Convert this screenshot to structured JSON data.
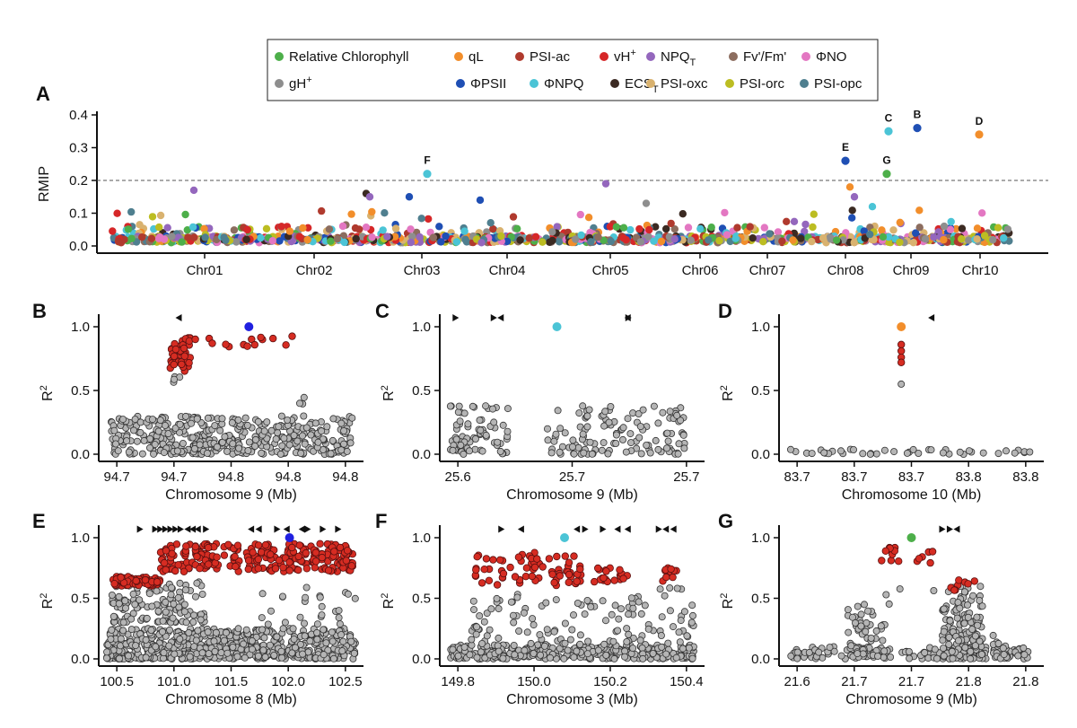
{
  "legend": {
    "items": [
      {
        "label": "Relative Chlorophyll",
        "color": "#4daf4a"
      },
      {
        "label": "qL",
        "color": "#f28e2b"
      },
      {
        "label": "PSI-ac",
        "color": "#b03a2e"
      },
      {
        "label": "vH",
        "sup": "+",
        "color": "#d62728"
      },
      {
        "label": "NPQ",
        "sub": "T",
        "color": "#9467bd"
      },
      {
        "label": "Fv'/Fm'",
        "color": "#8c6d5f"
      },
      {
        "label": "ΦNO",
        "color": "#e377c2"
      },
      {
        "label": "gH",
        "sup": "+",
        "color": "#8e8e8e"
      },
      {
        "label": "ΦPSII",
        "color": "#1f4fb4"
      },
      {
        "label": "ΦNPQ",
        "color": "#4bc4d6"
      },
      {
        "label": "ECS",
        "sub": "T",
        "color": "#3b2a22"
      },
      {
        "label": "PSI-oxc",
        "color": "#d9b26f"
      },
      {
        "label": "PSI-orc",
        "color": "#bcbd22"
      },
      {
        "label": "PSI-opc",
        "color": "#4f7f8f"
      }
    ]
  },
  "chart_data": [
    {
      "panel": "A",
      "type": "scatter",
      "ylabel": "RMIP",
      "ylim": [
        0,
        0.4
      ],
      "yticks": [
        "0.0",
        "0.1",
        "0.2",
        "0.3",
        "0.4"
      ],
      "categories": [
        "Chr01",
        "Chr02",
        "Chr03",
        "Chr04",
        "Chr05",
        "Chr06",
        "Chr07",
        "Chr08",
        "Chr09",
        "Chr10"
      ],
      "threshold": 0.2,
      "highlight_points": [
        {
          "label": "F",
          "chromosome": "Chr03",
          "series": "ΦNPQ",
          "y": 0.22
        },
        {
          "label": "E",
          "chromosome": "Chr08",
          "series": "ΦPSII",
          "y": 0.26
        },
        {
          "label": "C",
          "chromosome": "Chr09",
          "series": "ΦNPQ",
          "y": 0.35
        },
        {
          "label": "G",
          "chromosome": "Chr09",
          "series": "Relative Chlorophyll",
          "y": 0.22
        },
        {
          "label": "B",
          "chromosome": "Chr09",
          "series": "ΦPSII",
          "y": 0.36
        },
        {
          "label": "D",
          "chromosome": "Chr10",
          "series": "qL",
          "y": 0.34
        }
      ],
      "other_peaks": [
        {
          "chromosome": "Chr01",
          "series": "NPQ_T",
          "y": 0.17
        },
        {
          "chromosome": "Chr02",
          "series": "ECS_T",
          "y": 0.16
        },
        {
          "chromosome": "Chr02",
          "series": "NPQ_T",
          "y": 0.15
        },
        {
          "chromosome": "Chr03",
          "series": "ΦPSII",
          "y": 0.15
        },
        {
          "chromosome": "Chr04",
          "series": "ΦPSII",
          "y": 0.14
        },
        {
          "chromosome": "Chr05",
          "series": "gH+",
          "y": 0.13
        },
        {
          "chromosome": "Chr05",
          "series": "NPQ_T",
          "y": 0.19
        },
        {
          "chromosome": "Chr08",
          "series": "qL",
          "y": 0.18
        },
        {
          "chromosome": "Chr08",
          "series": "NPQ_T",
          "y": 0.15
        },
        {
          "chromosome": "Chr08",
          "series": "ΦNPQ",
          "y": 0.12
        },
        {
          "chromosome": "Chr10",
          "series": "gH+",
          "y": 0.06
        }
      ]
    },
    {
      "panel": "B",
      "type": "scatter",
      "xlabel": "Chromosome 9 (Mb)",
      "ylabel": "R",
      "ylabel_sup": "2",
      "xticks": [
        "94.7",
        "94.7",
        "94.8",
        "94.8",
        "94.8"
      ],
      "yticks": [
        "0.0",
        "0.5",
        "1.0"
      ],
      "ylim": [
        0,
        1.1
      ],
      "lead_color": "#2020e0",
      "genes": [
        {
          "x": 0.295,
          "dir": "left"
        }
      ],
      "lead": {
        "x": 0.57,
        "y": 1.0
      },
      "red_clusters": [
        {
          "x0": 0.26,
          "x1": 0.34,
          "y0": 0.65,
          "y1": 0.92,
          "n": 50
        },
        {
          "x0": 0.34,
          "x1": 0.75,
          "y0": 0.84,
          "y1": 0.93,
          "n": 14
        }
      ],
      "gray_clusters": [
        {
          "x0": 0.02,
          "x1": 0.98,
          "y0": 0.0,
          "y1": 0.3,
          "n": 420
        },
        {
          "x0": 0.26,
          "x1": 0.3,
          "y0": 0.55,
          "y1": 0.62,
          "n": 4
        },
        {
          "x0": 0.75,
          "x1": 0.8,
          "y0": 0.35,
          "y1": 0.46,
          "n": 3
        }
      ]
    },
    {
      "panel": "C",
      "type": "scatter",
      "xlabel": "Chromosome 9 (Mb)",
      "ylabel": "R",
      "ylabel_sup": "2",
      "xticks": [
        "25.6",
        "25.7",
        "25.7"
      ],
      "yticks": [
        "0.0",
        "0.5",
        "1.0"
      ],
      "ylim": [
        0,
        1.1
      ],
      "lead_color": "#4bc4d6",
      "genes": [
        {
          "x": 0.04,
          "dir": "right"
        },
        {
          "x": 0.19,
          "dir": "right"
        },
        {
          "x": 0.22,
          "dir": "left"
        },
        {
          "x": 0.72,
          "dir": "right"
        },
        {
          "x": 0.72,
          "dir": "left"
        }
      ],
      "lead": {
        "x": 0.44,
        "y": 1.0
      },
      "red_clusters": [],
      "gray_clusters": [
        {
          "x0": 0.02,
          "x1": 0.25,
          "y0": 0.0,
          "y1": 0.38,
          "n": 70
        },
        {
          "x0": 0.4,
          "x1": 0.95,
          "y0": 0.0,
          "y1": 0.38,
          "n": 120
        }
      ]
    },
    {
      "panel": "D",
      "type": "scatter",
      "xlabel": "Chromosome 10 (Mb)",
      "ylabel": "R",
      "ylabel_sup": "2",
      "xticks": [
        "83.7",
        "83.7",
        "83.7",
        "83.8",
        "83.8"
      ],
      "yticks": [
        "0.0",
        "0.5",
        "1.0"
      ],
      "ylim": [
        0,
        1.1
      ],
      "lead_color": "#f28e2b",
      "genes": [
        {
          "x": 0.58,
          "dir": "left"
        }
      ],
      "lead": {
        "x": 0.46,
        "y": 1.0
      },
      "red_points": [
        {
          "x": 0.46,
          "y": 0.86
        },
        {
          "x": 0.46,
          "y": 0.81
        },
        {
          "x": 0.46,
          "y": 0.76
        },
        {
          "x": 0.46,
          "y": 0.72
        }
      ],
      "red_clusters": [],
      "gray_points": [
        {
          "x": 0.46,
          "y": 0.55
        }
      ],
      "gray_clusters": [
        {
          "x0": 0.02,
          "x1": 0.98,
          "y0": 0.0,
          "y1": 0.04,
          "n": 40
        }
      ]
    },
    {
      "panel": "E",
      "type": "scatter",
      "xlabel": "Chromosome 8 (Mb)",
      "ylabel": "R",
      "ylabel_sup": "2",
      "xticks": [
        "100.5",
        "101.0",
        "101.5",
        "102.0",
        "102.5"
      ],
      "yticks": [
        "0.0",
        "0.5",
        "1.0"
      ],
      "ylim": [
        0,
        1.1
      ],
      "lead_color": "#2020e0",
      "genes": [
        {
          "x": 0.14,
          "dir": "right"
        },
        {
          "x": 0.2,
          "dir": "right"
        },
        {
          "x": 0.22,
          "dir": "right"
        },
        {
          "x": 0.24,
          "dir": "right"
        },
        {
          "x": 0.26,
          "dir": "right"
        },
        {
          "x": 0.28,
          "dir": "right"
        },
        {
          "x": 0.3,
          "dir": "right"
        },
        {
          "x": 0.33,
          "dir": "left"
        },
        {
          "x": 0.35,
          "dir": "left"
        },
        {
          "x": 0.37,
          "dir": "left"
        },
        {
          "x": 0.4,
          "dir": "right"
        },
        {
          "x": 0.58,
          "dir": "left"
        },
        {
          "x": 0.61,
          "dir": "left"
        },
        {
          "x": 0.68,
          "dir": "right"
        },
        {
          "x": 0.72,
          "dir": "left"
        },
        {
          "x": 0.78,
          "dir": "left"
        },
        {
          "x": 0.8,
          "dir": "right"
        },
        {
          "x": 0.86,
          "dir": "right"
        },
        {
          "x": 0.92,
          "dir": "right"
        }
      ],
      "lead": {
        "x": 0.73,
        "y": 1.0
      },
      "red_clusters": [
        {
          "x0": 0.03,
          "x1": 0.22,
          "y0": 0.6,
          "y1": 0.68,
          "n": 60
        },
        {
          "x0": 0.22,
          "x1": 0.98,
          "y0": 0.72,
          "y1": 0.95,
          "n": 260
        }
      ],
      "gray_clusters": [
        {
          "x0": 0.01,
          "x1": 0.99,
          "y0": 0.0,
          "y1": 0.25,
          "n": 650
        },
        {
          "x0": 0.03,
          "x1": 0.4,
          "y0": 0.3,
          "y1": 0.64,
          "n": 120
        },
        {
          "x0": 0.6,
          "x1": 0.99,
          "y0": 0.28,
          "y1": 0.6,
          "n": 25
        }
      ]
    },
    {
      "panel": "F",
      "type": "scatter",
      "xlabel": "Chromosome 3 (Mb)",
      "ylabel": "R",
      "ylabel_sup": "2",
      "xticks": [
        "149.8",
        "150.0",
        "150.2",
        "150.4"
      ],
      "yticks": [
        "0.0",
        "0.5",
        "1.0"
      ],
      "ylim": [
        0,
        1.1
      ],
      "lead_color": "#4bc4d6",
      "genes": [
        {
          "x": 0.22,
          "dir": "right"
        },
        {
          "x": 0.3,
          "dir": "left"
        },
        {
          "x": 0.52,
          "dir": "left"
        },
        {
          "x": 0.55,
          "dir": "right"
        },
        {
          "x": 0.62,
          "dir": "right"
        },
        {
          "x": 0.68,
          "dir": "left"
        },
        {
          "x": 0.72,
          "dir": "left"
        },
        {
          "x": 0.84,
          "dir": "right"
        },
        {
          "x": 0.87,
          "dir": "left"
        },
        {
          "x": 0.9,
          "dir": "left"
        }
      ],
      "lead": {
        "x": 0.47,
        "y": 1.0
      },
      "red_clusters": [
        {
          "x0": 0.1,
          "x1": 0.55,
          "y0": 0.6,
          "y1": 0.88,
          "n": 70
        },
        {
          "x0": 0.58,
          "x1": 0.72,
          "y0": 0.63,
          "y1": 0.75,
          "n": 20
        },
        {
          "x0": 0.85,
          "x1": 0.92,
          "y0": 0.62,
          "y1": 0.75,
          "n": 10
        }
      ],
      "gray_clusters": [
        {
          "x0": 0.02,
          "x1": 0.98,
          "y0": 0.0,
          "y1": 0.12,
          "n": 300
        },
        {
          "x0": 0.1,
          "x1": 0.98,
          "y0": 0.12,
          "y1": 0.6,
          "n": 120
        }
      ]
    },
    {
      "panel": "G",
      "type": "scatter",
      "xlabel": "Chromosome 9 (Mb)",
      "ylabel": "R",
      "ylabel_sup": "2",
      "xticks": [
        "21.6",
        "21.7",
        "21.7",
        "21.8",
        "21.8"
      ],
      "yticks": [
        "0.0",
        "0.5",
        "1.0"
      ],
      "ylim": [
        0,
        1.1
      ],
      "lead_color": "#4daf4a",
      "genes": [
        {
          "x": 0.62,
          "dir": "right"
        },
        {
          "x": 0.65,
          "dir": "right"
        },
        {
          "x": 0.68,
          "dir": "left"
        }
      ],
      "lead": {
        "x": 0.5,
        "y": 1.0
      },
      "red_clusters": [
        {
          "x0": 0.37,
          "x1": 0.45,
          "y0": 0.8,
          "y1": 0.92,
          "n": 10
        },
        {
          "x0": 0.5,
          "x1": 0.6,
          "y0": 0.78,
          "y1": 0.9,
          "n": 6
        },
        {
          "x0": 0.65,
          "x1": 0.75,
          "y0": 0.55,
          "y1": 0.66,
          "n": 8
        }
      ],
      "gray_clusters": [
        {
          "x0": 0.02,
          "x1": 0.98,
          "y0": 0.0,
          "y1": 0.1,
          "n": 140
        },
        {
          "x0": 0.25,
          "x1": 0.4,
          "y0": 0.0,
          "y1": 0.45,
          "n": 50
        },
        {
          "x0": 0.62,
          "x1": 0.78,
          "y0": 0.0,
          "y1": 0.6,
          "n": 160
        },
        {
          "x0": 0.82,
          "x1": 0.88,
          "y0": 0.0,
          "y1": 0.2,
          "n": 20
        },
        {
          "x0": 0.4,
          "x1": 0.6,
          "y0": 0.45,
          "y1": 0.6,
          "n": 4
        }
      ]
    }
  ]
}
